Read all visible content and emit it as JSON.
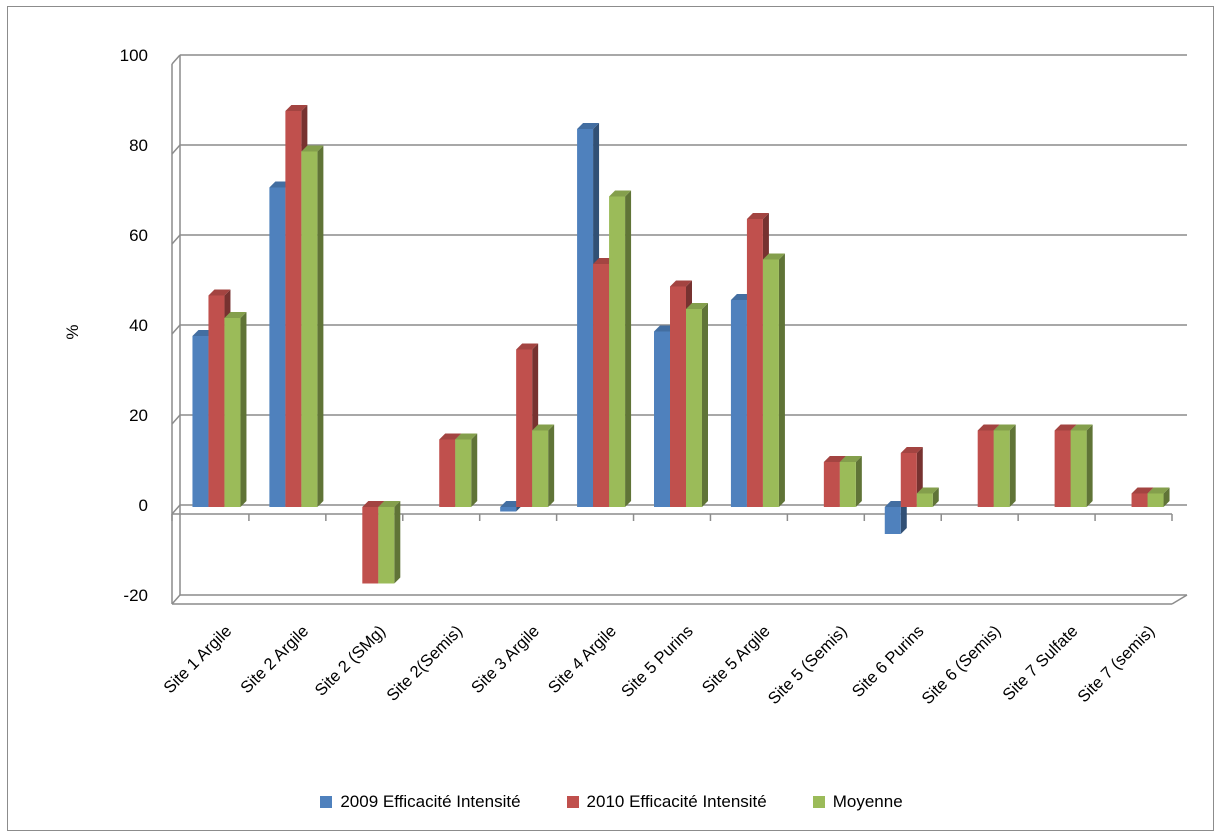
{
  "chart_data": {
    "type": "bar",
    "title": "",
    "xlabel": "",
    "ylabel": "%",
    "ylim": [
      -20,
      100
    ],
    "y_ticks": [
      -20,
      0,
      20,
      40,
      60,
      80,
      100
    ],
    "grid": true,
    "legend_position": "bottom",
    "categories": [
      "Site 1 Argile",
      "Site 2 Argile",
      "Site 2 (SMg)",
      "Site 2(Semis)",
      "Site 3 Argile",
      "Site 4 Argile",
      "Site 5 Purins",
      "Site 5 Argile",
      "Site 5 (Semis)",
      "Site 6 Purins",
      "Site 6 (Semis)",
      "Site 7 Sulfate",
      "Site 7 (semis)"
    ],
    "series": [
      {
        "name": "2009 Efficacité Intensité",
        "color": "#4f81bd",
        "values": [
          38,
          71,
          null,
          null,
          -1,
          84,
          39,
          46,
          null,
          -6,
          null,
          null,
          null
        ]
      },
      {
        "name": "2010 Efficacité Intensité",
        "color": "#c0504d",
        "values": [
          47,
          88,
          -17,
          15,
          35,
          54,
          49,
          64,
          10,
          12,
          17,
          17,
          3
        ]
      },
      {
        "name": "Moyenne",
        "color": "#9bbb59",
        "values": [
          42,
          79,
          -17,
          15,
          17,
          69,
          44,
          55,
          10,
          3,
          17,
          17,
          3
        ]
      }
    ]
  }
}
